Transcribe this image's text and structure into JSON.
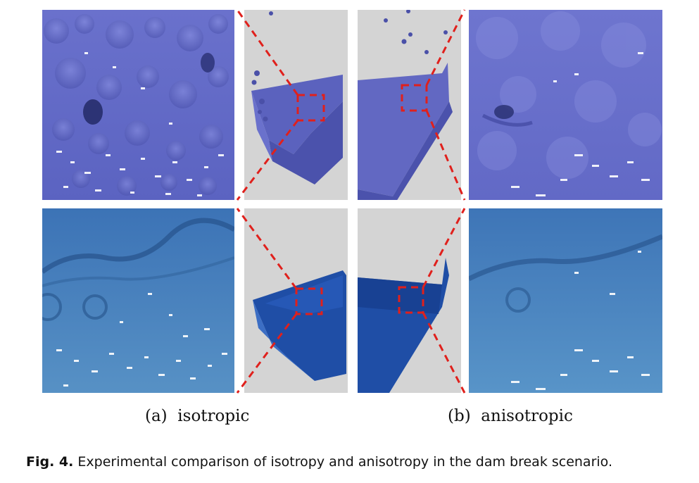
{
  "figure": {
    "label": "Fig. 4.",
    "caption": "Experimental comparison of isotropy and anisotropy in the dam break scenario."
  },
  "subfigures": [
    {
      "label": "(a)",
      "title": "isotropic"
    },
    {
      "label": "(b)",
      "title": "anisotropic"
    }
  ],
  "colors": {
    "top_row_fluid": "#5c63c0",
    "bottom_row_fluid": "#3d74b8",
    "background_gray": "#d3d3d3",
    "zoom_indicator": "#e0201c"
  }
}
